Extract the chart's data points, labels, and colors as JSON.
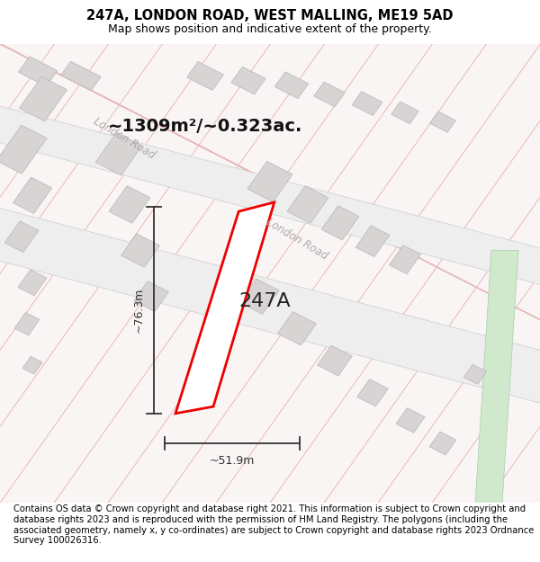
{
  "title": "247A, LONDON ROAD, WEST MALLING, ME19 5AD",
  "subtitle": "Map shows position and indicative extent of the property.",
  "footer": "Contains OS data © Crown copyright and database right 2021. This information is subject to Crown copyright and database rights 2023 and is reproduced with the permission of HM Land Registry. The polygons (including the associated geometry, namely x, y co-ordinates) are subject to Crown copyright and database rights 2023 Ordnance Survey 100026316.",
  "area_label": "~1309m²/~0.323ac.",
  "property_label": "247A",
  "width_label": "~51.9m",
  "height_label": "~76.3m",
  "bg_color": "#ffffff",
  "map_bg": "#faf5f5",
  "road_fill": "#eeeeee",
  "road_color": "#cccccc",
  "building_fill": "#d8d4d4",
  "building_stroke": "#bbbbbb",
  "parcel_line": "#e8b8b8",
  "property_stroke": "#ee0000",
  "road_label_color": "#aaaaaa",
  "dimension_color": "#333333",
  "green_strip": "#d0e8cc",
  "title_fontsize": 10.5,
  "subtitle_fontsize": 9,
  "footer_fontsize": 7.2,
  "area_fontsize": 14,
  "prop_label_fontsize": 16
}
